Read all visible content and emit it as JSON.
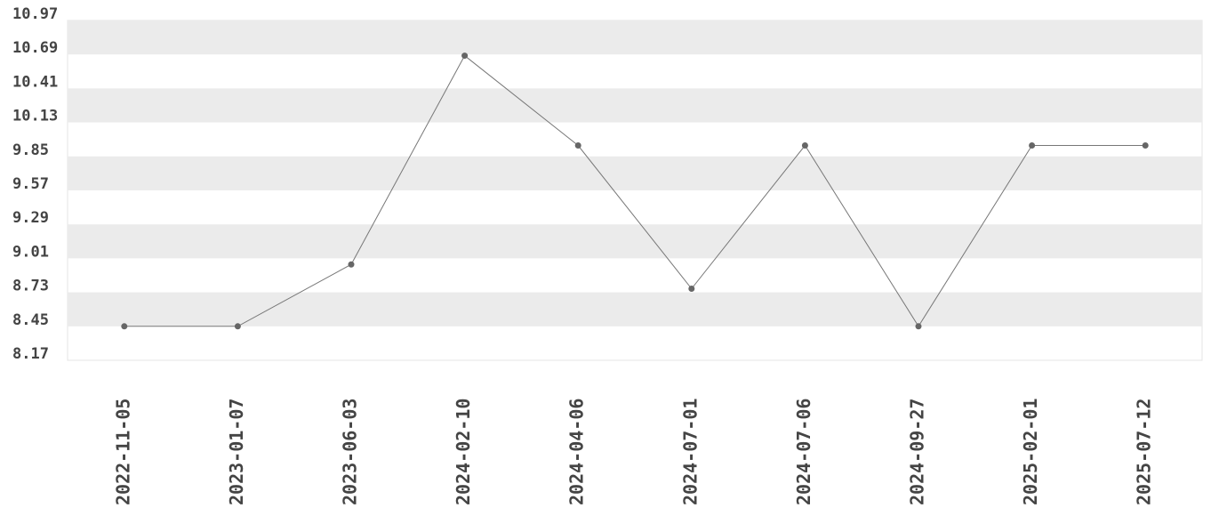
{
  "chart_data": {
    "type": "line",
    "categories": [
      "2022-11-05",
      "2023-01-07",
      "2023-06-03",
      "2024-02-10",
      "2024-04-06",
      "2024-07-01",
      "2024-07-06",
      "2024-09-27",
      "2025-02-01",
      "2025-07-12"
    ],
    "values": [
      8.45,
      8.45,
      8.96,
      10.68,
      9.94,
      8.76,
      9.94,
      8.45,
      9.94,
      9.94
    ],
    "color": "#777777",
    "marker_color": "#666666",
    "ylim": [
      8.17,
      10.97
    ],
    "yticks": [
      8.17,
      8.45,
      8.73,
      9.01,
      9.29,
      9.57,
      9.85,
      10.13,
      10.41,
      10.69,
      10.97
    ],
    "band_color": "#ebebeb"
  }
}
